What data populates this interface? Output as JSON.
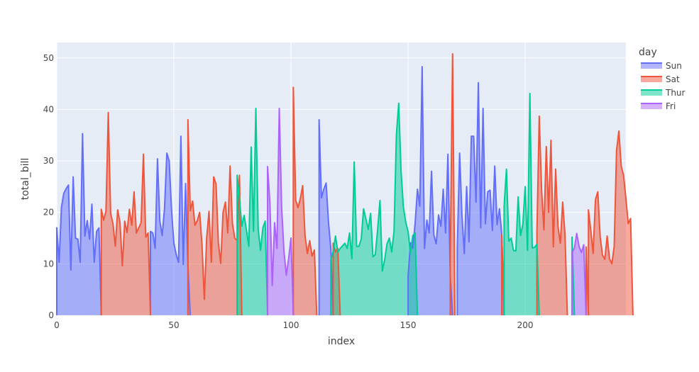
{
  "chart_data": {
    "type": "area",
    "xlabel": "index",
    "ylabel": "total_bill",
    "xlim": [
      0,
      243
    ],
    "ylim": [
      0,
      53
    ],
    "x_ticks": [
      0,
      50,
      100,
      150,
      200
    ],
    "y_ticks": [
      0,
      10,
      20,
      30,
      40,
      50
    ],
    "grid": true,
    "legend": {
      "title": "day",
      "position": "right"
    },
    "series": [
      {
        "name": "Sun",
        "color": "#636efa",
        "fill": "rgba(99,110,250,0.5)",
        "segments": [
          {
            "x0": 0,
            "values": [
              17.0,
              10.3,
              21.0,
              23.7,
              24.6,
              25.3,
              8.8,
              26.9,
              15.0,
              14.8,
              10.3,
              35.3,
              15.4,
              18.4,
              14.8,
              21.6,
              10.3,
              16.3,
              16.97
            ]
          },
          {
            "x0": 40,
            "values": [
              16.3,
              16.0,
              13.0,
              30.4,
              18.3,
              15.5,
              20.7,
              31.5,
              30.0,
              20.5,
              14.0,
              11.8,
              10.3,
              34.8,
              9.9,
              25.6,
              9.6
            ]
          },
          {
            "x0": 112,
            "values": [
              38.0,
              22.8,
              24.5,
              25.7,
              18.2,
              13.0
            ]
          },
          {
            "x0": 150,
            "values": [
              7.5,
              14.1,
              13.0,
              17.9,
              24.5,
              21.2,
              48.3,
              13.0,
              18.5,
              16.0,
              28.0,
              15.6,
              13.9,
              19.5,
              17.3,
              24.5,
              16.0,
              31.3,
              7.7
            ]
          },
          {
            "x0": 171,
            "values": [
              13.0,
              31.5,
              19.4,
              12.0,
              25.0,
              14.3,
              34.8,
              34.8,
              22.0,
              45.2,
              17.0,
              40.2,
              17.8,
              24.0,
              24.3,
              16.5,
              29.0,
              17.6,
              20.7,
              15.7
            ]
          }
        ]
      },
      {
        "name": "Sat",
        "color": "#ef553b",
        "fill": "rgba(239,85,59,0.5)",
        "segments": [
          {
            "x0": 19,
            "values": [
              20.6,
              18.5,
              20.2,
              39.4,
              19.8,
              17.8,
              13.4,
              20.5,
              18.0,
              9.6,
              18.3,
              16.1,
              20.6,
              17.5,
              24.0,
              16.0,
              17.0,
              18.0,
              31.3,
              15.2,
              16.0
            ]
          },
          {
            "x0": 56,
            "values": [
              38.0,
              20.3,
              22.2,
              17.5,
              18.4,
              20.0,
              13.8,
              3.1,
              15.0,
              20.2,
              10.3,
              26.9,
              25.5,
              14.1,
              10.1,
              20.0,
              22.0,
              16.0,
              29.0,
              17.8,
              15.0,
              14.5,
              27.2
            ]
          },
          {
            "x0": 101,
            "values": [
              44.3,
              22.4,
              20.9,
              22.7,
              25.2,
              15.5,
              12.0,
              14.5,
              11.5,
              12.7
            ]
          },
          {
            "x0": 118,
            "values": [
              14.0,
              12.3,
              13.0
            ]
          },
          {
            "x0": 168,
            "values": [
              10.6,
              50.8
            ]
          },
          {
            "x0": 190,
            "values": [
              15.7
            ]
          },
          {
            "x0": 205,
            "values": [
              16.0,
              38.7,
              24.3,
              16.6,
              32.8,
              20.0,
              34.0,
              13.3,
              28.4,
              17.3,
              14.0,
              22.0,
              15.7
            ]
          },
          {
            "x0": 226,
            "values": [
              13.3
            ]
          },
          {
            "x0": 227,
            "values": [
              20.5,
              16.5,
              12.0,
              22.5,
              24.0,
              15.3,
              11.7,
              10.9,
              15.4,
              11.0,
              10.0,
              13.4,
              32.0,
              35.8,
              29.0,
              27.2,
              22.7,
              17.8,
              18.8
            ]
          }
        ]
      },
      {
        "name": "Thur",
        "color": "#00cc96",
        "fill": "rgba(0,204,150,0.5)",
        "segments": [
          {
            "x0": 77,
            "values": [
              27.2,
              22.8,
              17.3,
              19.4,
              16.5,
              13.4,
              32.7,
              16.3,
              40.2,
              16.8,
              12.6,
              17.0,
              18.3
            ]
          },
          {
            "x0": 117,
            "values": [
              10.7,
              12.4,
              15.4,
              12.3,
              13.0,
              13.5,
              14.0,
              13.0,
              16.0,
              11.0,
              29.8,
              13.4,
              13.4,
              14.8,
              20.7,
              18.7,
              16.7,
              19.8,
              11.4,
              11.8,
              16.7,
              22.3,
              8.6,
              10.8,
              13.9,
              15.0,
              12.3,
              16.3,
              35.0,
              41.2,
              28.0,
              21.0,
              18.1,
              16.3,
              12.0,
              15.5,
              16.0
            ]
          },
          {
            "x0": 191,
            "values": [
              21.2,
              28.4,
              14.4,
              15.0,
              12.6,
              12.5,
              23.0,
              15.5,
              17.7,
              25.0,
              12.6,
              43.1,
              13.1,
              13.2,
              13.8
            ]
          },
          {
            "x0": 220,
            "values": [
              15.2
            ]
          }
        ]
      },
      {
        "name": "Fri",
        "color": "#ab63fa",
        "fill": "rgba(171,99,250,0.5)",
        "segments": [
          {
            "x0": 90,
            "values": [
              28.9,
              21.9,
              5.8,
              18.0,
              13.0,
              40.2,
              21.0,
              12.5,
              7.8,
              11.0,
              15.0
            ]
          },
          {
            "x0": 220,
            "values": [
              12.2,
              13.0,
              15.9,
              13.4,
              12.2,
              13.7
            ]
          }
        ]
      }
    ]
  }
}
